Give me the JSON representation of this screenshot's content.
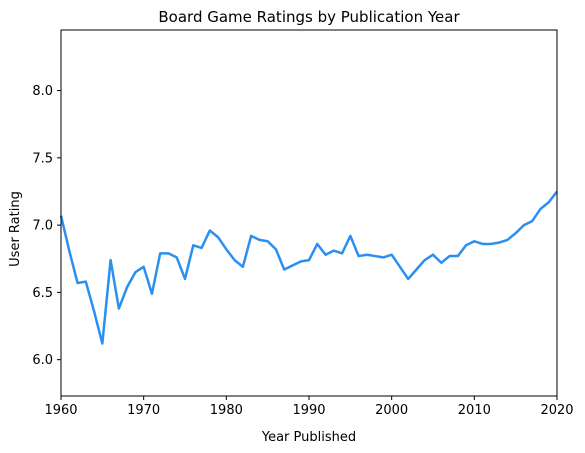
{
  "chart_data": {
    "type": "line",
    "title": "Board Game Ratings by Publication Year",
    "xlabel": "Year Published",
    "ylabel": "User Rating",
    "xlim": [
      1960,
      2020
    ],
    "ylim": [
      5.73,
      8.45
    ],
    "x_ticks": [
      "1960",
      "1970",
      "1980",
      "1990",
      "2000",
      "2010",
      "2020"
    ],
    "y_ticks": [
      "6.0",
      "6.5",
      "7.0",
      "7.5",
      "8.0"
    ],
    "grid": false,
    "legend": "none",
    "color": "#2a90f0",
    "series": [
      {
        "x": [
          1960,
          1961,
          1962,
          1963,
          1964,
          1965,
          1966,
          1967,
          1968,
          1969,
          1970,
          1971,
          1972,
          1973,
          1974,
          1975,
          1976,
          1977,
          1978,
          1979,
          1980,
          1981,
          1982,
          1983,
          1984,
          1985,
          1986,
          1987,
          1988,
          1989,
          1990,
          1991,
          1992,
          1993,
          1994,
          1995,
          1996,
          1997,
          1998,
          1999,
          2000,
          2001,
          2002,
          2003,
          2004,
          2005,
          2006,
          2007,
          2008,
          2009,
          2010,
          2011,
          2012,
          2013,
          2014,
          2015,
          2016,
          2017,
          2018,
          2019,
          2020
        ],
        "y": [
          7.07,
          6.81,
          6.57,
          6.58,
          6.36,
          6.12,
          6.74,
          6.38,
          6.54,
          6.65,
          6.69,
          6.49,
          6.79,
          6.79,
          6.76,
          6.6,
          6.85,
          6.83,
          6.96,
          6.91,
          6.82,
          6.74,
          6.69,
          6.92,
          6.89,
          6.88,
          6.82,
          6.67,
          6.7,
          6.73,
          6.74,
          6.86,
          6.78,
          6.81,
          6.79,
          6.92,
          6.77,
          6.78,
          6.77,
          6.76,
          6.78,
          6.69,
          6.6,
          6.67,
          6.74,
          6.78,
          6.72,
          6.77,
          6.77,
          6.85,
          6.88,
          6.86,
          6.86,
          6.87,
          6.89,
          6.94,
          7.0,
          7.03,
          7.12,
          7.17,
          7.25
        ]
      }
    ]
  }
}
